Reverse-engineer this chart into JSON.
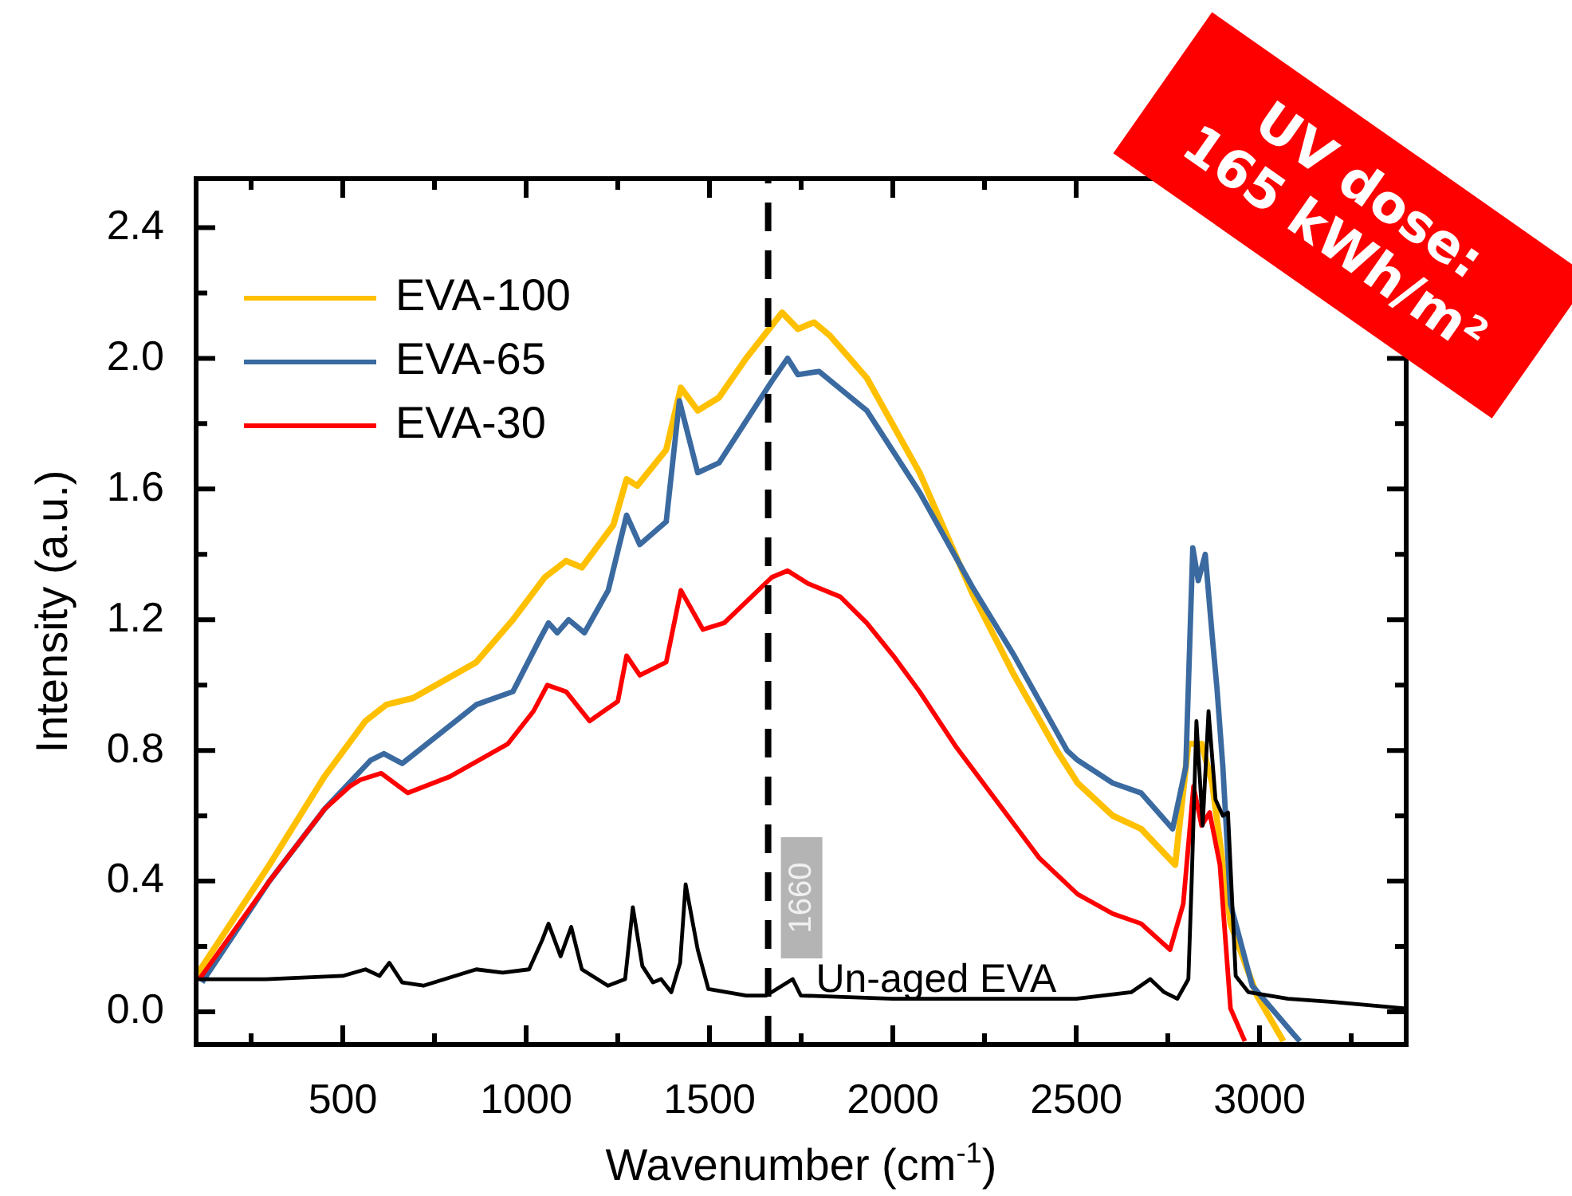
{
  "chart_data": {
    "type": "line",
    "xlabel": "Wavenumber (cm$^{-1}$)",
    "ylabel": "Intensity (a.u.)",
    "xlim": [
      100,
      3400
    ],
    "ylim": [
      -0.1,
      2.55
    ],
    "xticks": [
      {
        "value": 250,
        "label": null
      },
      500,
      {
        "value": 750,
        "label": null
      },
      1000,
      {
        "value": 1250,
        "label": null
      },
      1500,
      {
        "value": 1750,
        "label": null
      },
      2000,
      {
        "value": 2250,
        "label": null
      },
      2500,
      {
        "value": 2750,
        "label": null
      },
      3000,
      {
        "value": 3250,
        "label": null
      }
    ],
    "yticks": [
      {
        "value": 0,
        "label": "0.0"
      },
      {
        "value": 0.2,
        "label": null
      },
      0.4,
      {
        "value": 0.6,
        "label": null
      },
      0.8,
      {
        "value": 1,
        "label": null
      },
      1.2,
      {
        "value": 1.4,
        "label": null
      },
      1.6,
      {
        "value": 1.8,
        "label": null
      },
      {
        "value": 2,
        "label": "2.0"
      },
      {
        "value": 2.2,
        "label": null
      },
      2.4
    ],
    "legend": "top left",
    "line_style": "solid",
    "ref_lines": [
      {
        "axis": "x",
        "value": 1660,
        "label": "1660",
        "line_style": "dashed",
        "color": "#000000"
      }
    ],
    "annotations": [
      "UV dose: 165 kWh/m²",
      {
        "text": "Un-aged EVA",
        "x": 1790,
        "y": 0.06
      }
    ],
    "series": [
      {
        "name": "EVA-100",
        "color": "#ffc000",
        "x": [
          100,
          300,
          450,
          562,
          619,
          691,
          864,
          964,
          1051,
          1109,
          1152,
          1238,
          1274,
          1303,
          1382,
          1422,
          1468,
          1526,
          1600,
          1698,
          1741,
          1785,
          1828,
          1929,
          2073,
          2217,
          2331,
          2447,
          2504,
          2600,
          2677,
          2770,
          2806,
          2842,
          2871,
          2921,
          2993,
          3065
        ],
        "values": [
          0.11,
          0.45,
          0.72,
          0.89,
          0.94,
          0.96,
          1.07,
          1.2,
          1.33,
          1.38,
          1.36,
          1.49,
          1.63,
          1.61,
          1.72,
          1.91,
          1.84,
          1.88,
          2.0,
          2.14,
          2.09,
          2.11,
          2.07,
          1.94,
          1.65,
          1.28,
          1.03,
          0.8,
          0.7,
          0.6,
          0.56,
          0.45,
          0.82,
          0.82,
          0.7,
          0.27,
          0.05,
          -0.09
        ]
      },
      {
        "name": "EVA-65",
        "color": "#3a6aa0",
        "x": [
          116,
          300,
          450,
          576,
          612,
          662,
          864,
          964,
          1037,
          1061,
          1085,
          1116,
          1159,
          1224,
          1274,
          1310,
          1382,
          1418,
          1468,
          1526,
          1670,
          1713,
          1741,
          1799,
          1929,
          2073,
          2217,
          2331,
          2475,
          2504,
          2600,
          2677,
          2763,
          2799,
          2818,
          2833,
          2852,
          2871,
          2884,
          2900,
          2921,
          2980,
          3094,
          3110
        ],
        "values": [
          0.09,
          0.4,
          0.62,
          0.77,
          0.79,
          0.76,
          0.94,
          0.98,
          1.14,
          1.19,
          1.16,
          1.2,
          1.16,
          1.29,
          1.52,
          1.43,
          1.5,
          1.87,
          1.65,
          1.68,
          1.93,
          2.0,
          1.95,
          1.96,
          1.84,
          1.59,
          1.3,
          1.09,
          0.8,
          0.77,
          0.7,
          0.67,
          0.56,
          0.75,
          1.42,
          1.32,
          1.4,
          1.15,
          0.99,
          0.75,
          0.33,
          0.08,
          -0.07,
          -0.09
        ]
      },
      {
        "name": "EVA-30",
        "color": "#ff0000",
        "x": [
          109,
          300,
          450,
          519,
          548,
          605,
          677,
          792,
          950,
          1020,
          1058,
          1109,
          1173,
          1250,
          1274,
          1310,
          1382,
          1422,
          1482,
          1540,
          1670,
          1713,
          1770,
          1857,
          1929,
          2001,
          2073,
          2173,
          2300,
          2400,
          2504,
          2600,
          2677,
          2756,
          2792,
          2820,
          2842,
          2864,
          2892,
          2921,
          2960
        ],
        "values": [
          0.1,
          0.4,
          0.62,
          0.69,
          0.71,
          0.73,
          0.67,
          0.72,
          0.82,
          0.92,
          1.0,
          0.98,
          0.89,
          0.95,
          1.09,
          1.03,
          1.07,
          1.29,
          1.17,
          1.19,
          1.33,
          1.35,
          1.31,
          1.27,
          1.19,
          1.09,
          0.98,
          0.81,
          0.62,
          0.47,
          0.36,
          0.3,
          0.27,
          0.19,
          0.33,
          0.69,
          0.57,
          0.61,
          0.45,
          0.01,
          -0.09
        ]
      },
      {
        "color": "#000000",
        "x": [
          100,
          290,
          500,
          562,
          600,
          627,
          662,
          720,
          864,
          936,
          1008,
          1044,
          1061,
          1094,
          1123,
          1152,
          1223,
          1270,
          1291,
          1317,
          1346,
          1368,
          1396,
          1420,
          1435,
          1468,
          1497,
          1600,
          1655,
          1727,
          1749,
          2000,
          2300,
          2500,
          2650,
          2702,
          2740,
          2776,
          2806,
          2815,
          2828,
          2845,
          2861,
          2880,
          2900,
          2914,
          2935,
          2970,
          3078,
          3200,
          3400
        ],
        "values": [
          0.1,
          0.1,
          0.11,
          0.13,
          0.11,
          0.15,
          0.09,
          0.08,
          0.13,
          0.12,
          0.13,
          0.22,
          0.27,
          0.17,
          0.26,
          0.13,
          0.08,
          0.1,
          0.32,
          0.14,
          0.09,
          0.1,
          0.06,
          0.15,
          0.39,
          0.19,
          0.07,
          0.05,
          0.05,
          0.1,
          0.05,
          0.04,
          0.04,
          0.04,
          0.06,
          0.1,
          0.06,
          0.04,
          0.1,
          0.4,
          0.89,
          0.57,
          0.92,
          0.65,
          0.6,
          0.61,
          0.11,
          0.06,
          0.04,
          0.03,
          0.01
        ]
      }
    ]
  }
}
